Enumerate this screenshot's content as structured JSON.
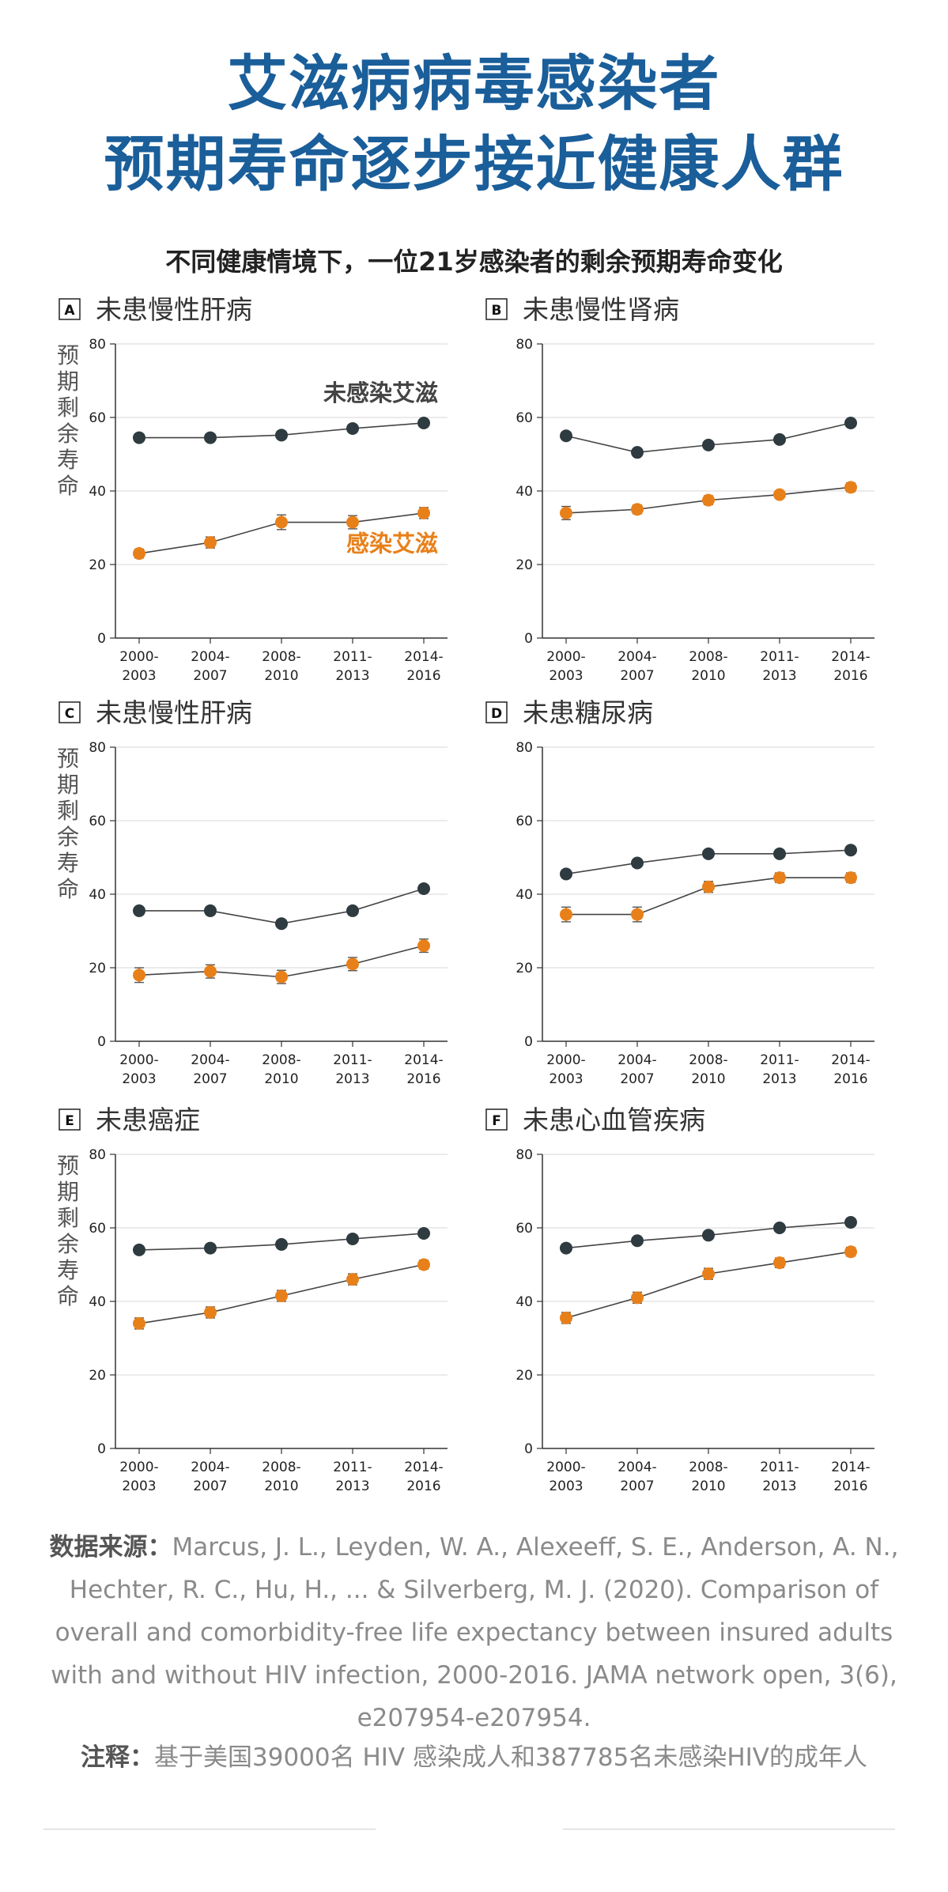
{
  "title_line1": "艾滋病病毒感染者",
  "title_line2": "预期寿命逐步接近健康人群",
  "subtitle": "不同健康情境下，一位21岁感染者的剩余预期寿命变化",
  "y_axis_label_chars": [
    "预",
    "期",
    "剩",
    "余",
    "寿",
    "命"
  ],
  "series_labels": {
    "uninfected": "未感染艾滋",
    "infected": "感染艾滋"
  },
  "colors": {
    "title": "#1a5e9a",
    "uninfected": "#2e3b40",
    "infected": "#e8801a"
  },
  "source_label": "数据来源：",
  "source_text": "Marcus, J. L., Leyden, W. A., Alexeeff, S. E., Anderson, A. N., Hechter, R. C., Hu, H., ... & Silverberg, M. J. (2020). Comparison of overall and comorbidity-free life expectancy between insured adults with and without HIV infection, 2000-2016. JAMA network open, 3(6), e207954-e207954.",
  "note_label": "注释：",
  "note_text": "基于美国39000名 HIV 感染成人和387785名未感染HIV的成年人",
  "chart_data": [
    {
      "type": "line",
      "letter": "A",
      "title": "未患慢性肝病",
      "categories": [
        "2000-2003",
        "2004-2007",
        "2008-2010",
        "2011-2013",
        "2014-2016"
      ],
      "ylim": [
        0,
        80
      ],
      "yticks": [
        0,
        20,
        40,
        60,
        80
      ],
      "series": [
        {
          "name": "未感染艾滋",
          "values": [
            54.5,
            54.5,
            55.2,
            57.0,
            58.5
          ],
          "err": [
            0.6,
            0.6,
            0.6,
            0.6,
            0.6
          ]
        },
        {
          "name": "感染艾滋",
          "values": [
            23.0,
            26.0,
            31.5,
            31.5,
            34.0
          ],
          "err": [
            1.2,
            1.5,
            2.0,
            1.8,
            1.5
          ]
        }
      ]
    },
    {
      "type": "line",
      "letter": "B",
      "title": "未患慢性肾病",
      "categories": [
        "2000-2003",
        "2004-2007",
        "2008-2010",
        "2011-2013",
        "2014-2016"
      ],
      "ylim": [
        0,
        80
      ],
      "yticks": [
        0,
        20,
        40,
        60,
        80
      ],
      "series": [
        {
          "name": "未感染艾滋",
          "values": [
            55.0,
            50.5,
            52.5,
            54.0,
            58.5
          ],
          "err": [
            0.6,
            0.6,
            0.6,
            0.6,
            0.6
          ]
        },
        {
          "name": "感染艾滋",
          "values": [
            34.0,
            35.0,
            37.5,
            39.0,
            41.0
          ],
          "err": [
            1.8,
            1.2,
            1.2,
            1.0,
            1.2
          ]
        }
      ]
    },
    {
      "type": "line",
      "letter": "C",
      "title": "未患慢性肝病",
      "categories": [
        "2000-2003",
        "2004-2007",
        "2008-2010",
        "2011-2013",
        "2014-2016"
      ],
      "ylim": [
        0,
        80
      ],
      "yticks": [
        0,
        20,
        40,
        60,
        80
      ],
      "series": [
        {
          "name": "未感染艾滋",
          "values": [
            35.5,
            35.5,
            32.0,
            35.5,
            41.5
          ],
          "err": [
            0.6,
            0.6,
            0.6,
            0.6,
            0.6
          ]
        },
        {
          "name": "感染艾滋",
          "values": [
            18.0,
            19.0,
            17.5,
            21.0,
            26.0
          ],
          "err": [
            2.0,
            1.8,
            1.8,
            1.8,
            1.8
          ]
        }
      ]
    },
    {
      "type": "line",
      "letter": "D",
      "title": "未患糖尿病",
      "categories": [
        "2000-2003",
        "2004-2007",
        "2008-2010",
        "2011-2013",
        "2014-2016"
      ],
      "ylim": [
        0,
        80
      ],
      "yticks": [
        0,
        20,
        40,
        60,
        80
      ],
      "series": [
        {
          "name": "未感染艾滋",
          "values": [
            45.5,
            48.5,
            51.0,
            51.0,
            52.0
          ],
          "err": [
            0.6,
            0.6,
            0.6,
            0.6,
            0.6
          ]
        },
        {
          "name": "感染艾滋",
          "values": [
            34.5,
            34.5,
            42.0,
            44.5,
            44.5
          ],
          "err": [
            2.0,
            2.0,
            1.5,
            1.3,
            1.3
          ]
        }
      ]
    },
    {
      "type": "line",
      "letter": "E",
      "title": "未患癌症",
      "categories": [
        "2000-2003",
        "2004-2007",
        "2008-2010",
        "2011-2013",
        "2014-2016"
      ],
      "ylim": [
        0,
        80
      ],
      "yticks": [
        0,
        20,
        40,
        60,
        80
      ],
      "series": [
        {
          "name": "未感染艾滋",
          "values": [
            54.0,
            54.5,
            55.5,
            57.0,
            58.5
          ],
          "err": [
            0.6,
            0.6,
            0.6,
            0.6,
            0.6
          ]
        },
        {
          "name": "感染艾滋",
          "values": [
            34.0,
            37.0,
            41.5,
            46.0,
            50.0
          ],
          "err": [
            1.5,
            1.5,
            1.5,
            1.5,
            1.2
          ]
        }
      ]
    },
    {
      "type": "line",
      "letter": "F",
      "title": "未患心血管疾病",
      "categories": [
        "2000-2003",
        "2004-2007",
        "2008-2010",
        "2011-2013",
        "2014-2016"
      ],
      "ylim": [
        0,
        80
      ],
      "yticks": [
        0,
        20,
        40,
        60,
        80
      ],
      "series": [
        {
          "name": "未感染艾滋",
          "values": [
            54.5,
            56.5,
            58.0,
            60.0,
            61.5
          ],
          "err": [
            0.6,
            0.6,
            0.6,
            0.6,
            0.6
          ]
        },
        {
          "name": "感染艾滋",
          "values": [
            35.5,
            41.0,
            47.5,
            50.5,
            53.5
          ],
          "err": [
            1.5,
            1.5,
            1.5,
            1.3,
            1.2
          ]
        }
      ]
    }
  ]
}
